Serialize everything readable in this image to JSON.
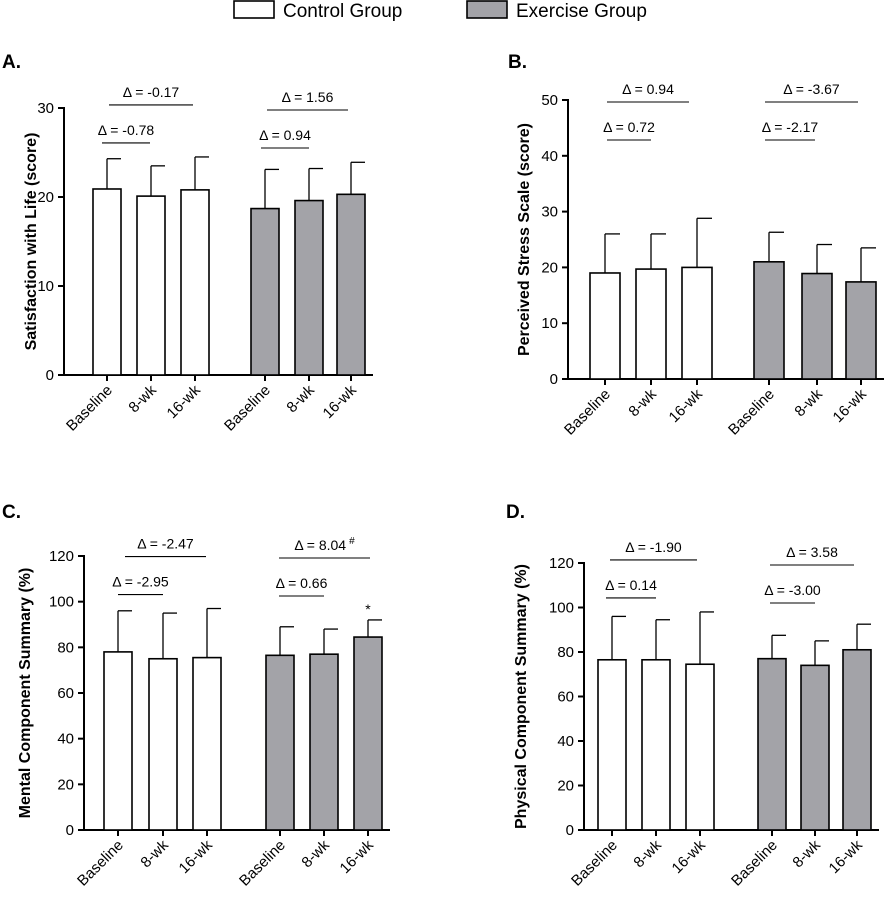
{
  "colors": {
    "control_fill": "#ffffff",
    "exercise_fill": "#a3a3a8",
    "ink": "#000000"
  },
  "legend": [
    {
      "label": "Control Group",
      "color": "#ffffff"
    },
    {
      "label": "Exercise Group",
      "color": "#a3a3a8"
    }
  ],
  "chart_data": [
    {
      "type": "bar",
      "panel_label": "A.",
      "ylabel": "Satisfaction with Life (score)",
      "ylim": [
        0,
        30
      ],
      "yticks": [
        0,
        10,
        20,
        30
      ],
      "categories": [
        "Baseline",
        "8-wk",
        "16-wk"
      ],
      "series": [
        {
          "name": "Control Group",
          "values": [
            20.9,
            20.1,
            20.8
          ],
          "errors": [
            3.4,
            3.4,
            3.7
          ]
        },
        {
          "name": "Exercise Group",
          "values": [
            18.7,
            19.6,
            20.3
          ],
          "errors": [
            4.4,
            3.6,
            3.6
          ]
        }
      ],
      "annotations": [
        {
          "group": "Control Group",
          "from": "Baseline",
          "to": "8-wk",
          "text": "Δ = -0.78",
          "level": 1
        },
        {
          "group": "Control Group",
          "from": "Baseline",
          "to": "16-wk",
          "text": "Δ = -0.17",
          "level": 2
        },
        {
          "group": "Exercise Group",
          "from": "Baseline",
          "to": "8-wk",
          "text": "Δ = 0.94",
          "level": 1
        },
        {
          "group": "Exercise Group",
          "from": "Baseline",
          "to": "16-wk",
          "text": "Δ = 1.56",
          "level": 2
        }
      ],
      "markers": []
    },
    {
      "type": "bar",
      "panel_label": "B.",
      "ylabel": "Perceived Stress Scale (score)",
      "ylim": [
        0,
        50
      ],
      "yticks": [
        0,
        10,
        20,
        30,
        40,
        50
      ],
      "categories": [
        "Baseline",
        "8-wk",
        "16-wk"
      ],
      "series": [
        {
          "name": "Control Group",
          "values": [
            19.0,
            19.7,
            20.0
          ],
          "errors": [
            7.0,
            6.3,
            8.8
          ]
        },
        {
          "name": "Exercise Group",
          "values": [
            21.0,
            18.9,
            17.4
          ],
          "errors": [
            5.3,
            5.2,
            6.1
          ]
        }
      ],
      "annotations": [
        {
          "group": "Control Group",
          "from": "Baseline",
          "to": "8-wk",
          "text": "Δ = 0.72",
          "level": 1
        },
        {
          "group": "Control Group",
          "from": "Baseline",
          "to": "16-wk",
          "text": "Δ = 0.94",
          "level": 2
        },
        {
          "group": "Exercise Group",
          "from": "Baseline",
          "to": "8-wk",
          "text": "Δ = -2.17",
          "level": 1
        },
        {
          "group": "Exercise Group",
          "from": "Baseline",
          "to": "16-wk",
          "text": "Δ = -3.67",
          "level": 2
        }
      ],
      "markers": []
    },
    {
      "type": "bar",
      "panel_label": "C.",
      "ylabel": "Mental Component Summary (%)",
      "ylim": [
        0,
        120
      ],
      "yticks": [
        0,
        20,
        40,
        60,
        80,
        100,
        120
      ],
      "categories": [
        "Baseline",
        "8-wk",
        "16-wk"
      ],
      "series": [
        {
          "name": "Control Group",
          "values": [
            78,
            75,
            75.5
          ],
          "errors": [
            18,
            20,
            21.5
          ]
        },
        {
          "name": "Exercise Group",
          "values": [
            76.5,
            77,
            84.5
          ],
          "errors": [
            12.5,
            11,
            7.5
          ]
        }
      ],
      "annotations": [
        {
          "group": "Control Group",
          "from": "Baseline",
          "to": "8-wk",
          "text": "Δ = -2.95",
          "level": 1
        },
        {
          "group": "Control Group",
          "from": "Baseline",
          "to": "16-wk",
          "text": "Δ = -2.47",
          "level": 2
        },
        {
          "group": "Exercise Group",
          "from": "Baseline",
          "to": "8-wk",
          "text": "Δ = 0.66",
          "level": 1
        },
        {
          "group": "Exercise Group",
          "from": "Baseline",
          "to": "16-wk",
          "text": "Δ = 8.04",
          "sup": "#",
          "level": 2
        }
      ],
      "markers": [
        {
          "group": "Exercise Group",
          "category": "16-wk",
          "text": "*"
        }
      ]
    },
    {
      "type": "bar",
      "panel_label": "D.",
      "ylabel": "Physical Component Summary (%)",
      "ylim": [
        0,
        120
      ],
      "yticks": [
        0,
        20,
        40,
        60,
        80,
        100,
        120
      ],
      "categories": [
        "Baseline",
        "8-wk",
        "16-wk"
      ],
      "series": [
        {
          "name": "Control Group",
          "values": [
            76.5,
            76.5,
            74.5
          ],
          "errors": [
            19.5,
            18,
            23.5
          ]
        },
        {
          "name": "Exercise Group",
          "values": [
            77,
            74,
            81
          ],
          "errors": [
            10.5,
            11,
            11.5
          ]
        }
      ],
      "annotations": [
        {
          "group": "Control Group",
          "from": "Baseline",
          "to": "8-wk",
          "text": "Δ = 0.14",
          "level": 1
        },
        {
          "group": "Control Group",
          "from": "Baseline",
          "to": "16-wk",
          "text": "Δ = -1.90",
          "level": 2
        },
        {
          "group": "Exercise Group",
          "from": "Baseline",
          "to": "8-wk",
          "text": "Δ = -3.00",
          "level": 1
        },
        {
          "group": "Exercise Group",
          "from": "Baseline",
          "to": "16-wk",
          "text": "Δ = 3.58",
          "level": 2
        }
      ],
      "markers": []
    }
  ]
}
